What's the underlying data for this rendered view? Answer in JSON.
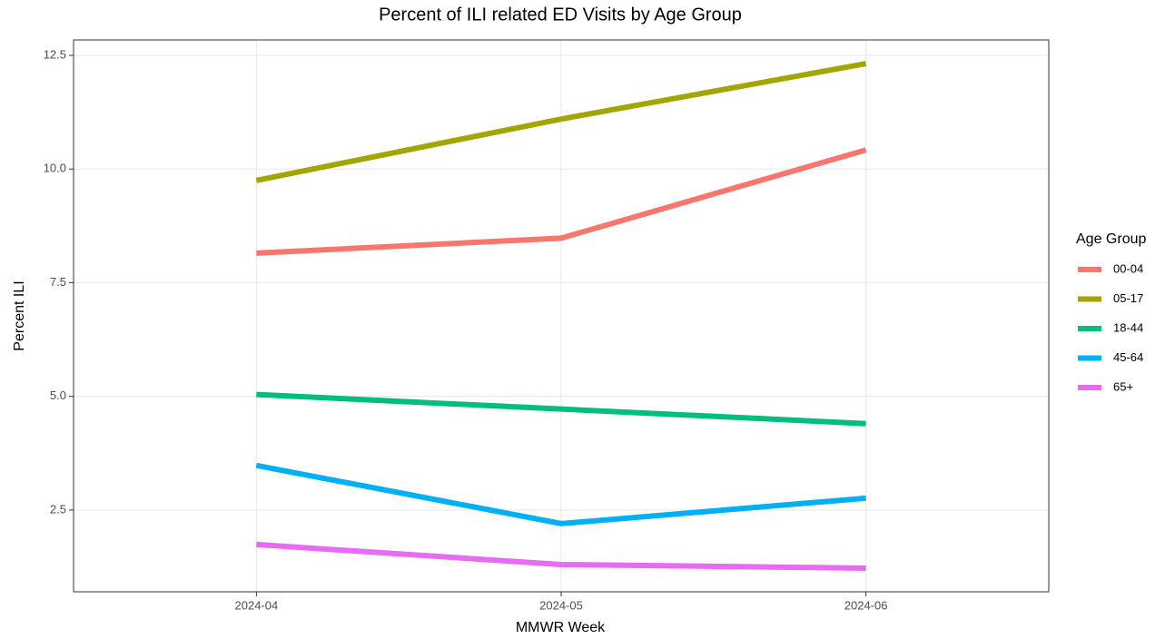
{
  "chart_data": {
    "type": "line",
    "title": "Percent of ILI related ED Visits by Age Group",
    "x_label": "MMWR Week",
    "y_label": "Percent ILI",
    "categories": [
      "2024-04",
      "2024-05",
      "2024-06"
    ],
    "series": [
      {
        "name": "00-04",
        "color": "#F8766D",
        "values": [
          8.15,
          8.48,
          10.42
        ]
      },
      {
        "name": "05-17",
        "color": "#A3A500",
        "values": [
          9.75,
          11.1,
          12.32
        ]
      },
      {
        "name": "18-44",
        "color": "#00BF7D",
        "values": [
          5.04,
          4.72,
          4.4
        ]
      },
      {
        "name": "45-64",
        "color": "#00B0F6",
        "values": [
          3.48,
          2.2,
          2.76
        ]
      },
      {
        "name": "65+",
        "color": "#E76BF3",
        "values": [
          1.74,
          1.3,
          1.22
        ]
      }
    ],
    "ylim": [
      0.7,
      12.84
    ],
    "yticks": [
      {
        "value": 2.5,
        "label": "2.5"
      },
      {
        "value": 5,
        "label": "5.0"
      },
      7.5,
      {
        "value": 10,
        "label": "10.0"
      },
      12.5
    ],
    "legend_title": "Age Group",
    "legend_position": "right",
    "grid": true
  }
}
